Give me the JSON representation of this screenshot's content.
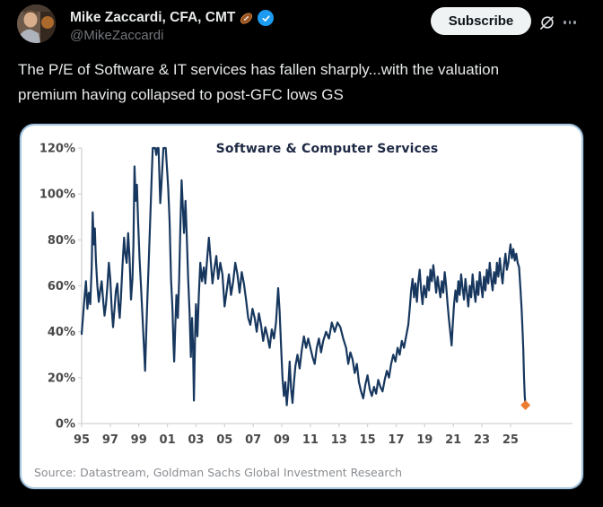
{
  "header": {
    "name": "Mike Zaccardi, CFA, CMT",
    "handle": "@MikeZaccardi",
    "subscribe_label": "Subscribe",
    "icons": {
      "avatar": "profile-photo",
      "name_emoji": "football-emoji",
      "verified": "verified-badge-icon",
      "grok": "grok-icon",
      "more": "more-options-icon"
    }
  },
  "tweet": {
    "text": "The P/E of Software & IT services has fallen sharply...with the valuation premium having collapsed to post-GFC lows GS"
  },
  "colors": {
    "page_bg": "#000000",
    "text_primary": "#E7E9EA",
    "text_secondary": "#71767B",
    "verified_blue": "#1D9BF0",
    "subscribe_bg": "#EFF3F4",
    "card_border": "#A9C7DE",
    "chart_line": "#17375E",
    "marker_orange": "#ED7D31",
    "axis_gray": "#D2D2D2",
    "tick_label_gray": "#4A4A4A"
  },
  "chart_data": {
    "type": "line",
    "title": "Software & Computer Services",
    "source": "Source: Datastream, Goldman Sachs Global Investment Research",
    "xlabel": "",
    "ylabel": "",
    "grid": false,
    "legend": false,
    "ylim": [
      0,
      120
    ],
    "y_ticks": [
      "0%",
      "20%",
      "40%",
      "60%",
      "80%",
      "100%",
      "120%"
    ],
    "y_tick_values": [
      0,
      20,
      40,
      60,
      80,
      100,
      120
    ],
    "x_ticks": [
      "95",
      "97",
      "99",
      "01",
      "03",
      "05",
      "07",
      "09",
      "11",
      "13",
      "15",
      "17",
      "19",
      "21",
      "23",
      "25"
    ],
    "x_tick_years": [
      1995,
      1997,
      1999,
      2001,
      2003,
      2005,
      2007,
      2009,
      2011,
      2013,
      2015,
      2017,
      2019,
      2021,
      2023,
      2025
    ],
    "line_color": "#17375E",
    "endpoint_marker": {
      "shape": "diamond",
      "color": "#ED7D31",
      "year": 2026.05,
      "value": 8
    },
    "series": [
      {
        "points": [
          [
            1995.0,
            39
          ],
          [
            1995.1,
            47
          ],
          [
            1995.2,
            55
          ],
          [
            1995.3,
            62
          ],
          [
            1995.4,
            50
          ],
          [
            1995.5,
            57
          ],
          [
            1995.6,
            52
          ],
          [
            1995.7,
            68
          ],
          [
            1995.77,
            92
          ],
          [
            1995.85,
            78
          ],
          [
            1995.92,
            85
          ],
          [
            1996.0,
            71
          ],
          [
            1996.1,
            60
          ],
          [
            1996.2,
            53
          ],
          [
            1996.3,
            58
          ],
          [
            1996.4,
            62
          ],
          [
            1996.5,
            54
          ],
          [
            1996.6,
            47
          ],
          [
            1996.7,
            52
          ],
          [
            1996.8,
            60
          ],
          [
            1996.9,
            70
          ],
          [
            1997.0,
            63
          ],
          [
            1997.1,
            50
          ],
          [
            1997.2,
            42
          ],
          [
            1997.3,
            50
          ],
          [
            1997.4,
            58
          ],
          [
            1997.5,
            61
          ],
          [
            1997.6,
            50
          ],
          [
            1997.66,
            46
          ],
          [
            1997.75,
            55
          ],
          [
            1997.85,
            68
          ],
          [
            1997.97,
            81
          ],
          [
            1998.05,
            74
          ],
          [
            1998.15,
            70
          ],
          [
            1998.25,
            83
          ],
          [
            1998.35,
            72
          ],
          [
            1998.45,
            54
          ],
          [
            1998.55,
            63
          ],
          [
            1998.62,
            78
          ],
          [
            1998.7,
            112
          ],
          [
            1998.78,
            97
          ],
          [
            1998.87,
            104
          ],
          [
            1998.95,
            88
          ],
          [
            1999.05,
            72
          ],
          [
            1999.15,
            60
          ],
          [
            1999.27,
            45
          ],
          [
            1999.37,
            32
          ],
          [
            1999.44,
            23
          ],
          [
            1999.52,
            40
          ],
          [
            1999.6,
            55
          ],
          [
            1999.7,
            72
          ],
          [
            1999.8,
            90
          ],
          [
            1999.9,
            108
          ],
          [
            1999.97,
            120
          ],
          [
            2000.05,
            120
          ],
          [
            2000.15,
            120
          ],
          [
            2000.22,
            117
          ],
          [
            2000.3,
            120
          ],
          [
            2000.38,
            120
          ],
          [
            2000.45,
            106
          ],
          [
            2000.5,
            96
          ],
          [
            2000.58,
            104
          ],
          [
            2000.65,
            112
          ],
          [
            2000.72,
            120
          ],
          [
            2000.8,
            120
          ],
          [
            2000.88,
            120
          ],
          [
            2000.95,
            113
          ],
          [
            2001.05,
            103
          ],
          [
            2001.15,
            88
          ],
          [
            2001.25,
            63
          ],
          [
            2001.35,
            50
          ],
          [
            2001.42,
            35
          ],
          [
            2001.47,
            27
          ],
          [
            2001.55,
            42
          ],
          [
            2001.63,
            56
          ],
          [
            2001.73,
            46
          ],
          [
            2001.82,
            62
          ],
          [
            2001.9,
            84
          ],
          [
            2001.99,
            106
          ],
          [
            2002.08,
            94
          ],
          [
            2002.16,
            83
          ],
          [
            2002.26,
            97
          ],
          [
            2002.35,
            82
          ],
          [
            2002.45,
            63
          ],
          [
            2002.55,
            48
          ],
          [
            2002.64,
            29
          ],
          [
            2002.72,
            46
          ],
          [
            2002.79,
            34
          ],
          [
            2002.85,
            10
          ],
          [
            2002.93,
            36
          ],
          [
            2003.0,
            52
          ],
          [
            2003.1,
            38
          ],
          [
            2003.2,
            56
          ],
          [
            2003.3,
            70
          ],
          [
            2003.42,
            62
          ],
          [
            2003.55,
            68
          ],
          [
            2003.65,
            61
          ],
          [
            2003.78,
            72
          ],
          [
            2003.9,
            81
          ],
          [
            2004.0,
            73
          ],
          [
            2004.15,
            61
          ],
          [
            2004.3,
            68
          ],
          [
            2004.42,
            73
          ],
          [
            2004.55,
            63
          ],
          [
            2004.7,
            70
          ],
          [
            2004.85,
            65
          ],
          [
            2005.0,
            51
          ],
          [
            2005.15,
            58
          ],
          [
            2005.3,
            65
          ],
          [
            2005.45,
            56
          ],
          [
            2005.6,
            62
          ],
          [
            2005.75,
            70
          ],
          [
            2005.9,
            65
          ],
          [
            2006.05,
            57
          ],
          [
            2006.2,
            66
          ],
          [
            2006.35,
            61
          ],
          [
            2006.5,
            54
          ],
          [
            2006.65,
            46
          ],
          [
            2006.8,
            43
          ],
          [
            2006.95,
            50
          ],
          [
            2007.1,
            46
          ],
          [
            2007.25,
            40
          ],
          [
            2007.4,
            48
          ],
          [
            2007.55,
            43
          ],
          [
            2007.7,
            36
          ],
          [
            2007.85,
            42
          ],
          [
            2008.0,
            38
          ],
          [
            2008.15,
            33
          ],
          [
            2008.3,
            41
          ],
          [
            2008.45,
            37
          ],
          [
            2008.6,
            44
          ],
          [
            2008.75,
            59
          ],
          [
            2008.85,
            49
          ],
          [
            2008.95,
            34
          ],
          [
            2009.05,
            20
          ],
          [
            2009.15,
            12
          ],
          [
            2009.25,
            18
          ],
          [
            2009.35,
            8
          ],
          [
            2009.45,
            16
          ],
          [
            2009.55,
            27
          ],
          [
            2009.65,
            15
          ],
          [
            2009.75,
            9
          ],
          [
            2009.85,
            18
          ],
          [
            2009.95,
            25
          ],
          [
            2010.1,
            30
          ],
          [
            2010.25,
            24
          ],
          [
            2010.4,
            32
          ],
          [
            2010.55,
            38
          ],
          [
            2010.7,
            33
          ],
          [
            2010.85,
            37
          ],
          [
            2011.0,
            33
          ],
          [
            2011.15,
            29
          ],
          [
            2011.3,
            26
          ],
          [
            2011.45,
            33
          ],
          [
            2011.6,
            37
          ],
          [
            2011.75,
            31
          ],
          [
            2011.9,
            36
          ],
          [
            2012.1,
            40
          ],
          [
            2012.3,
            37
          ],
          [
            2012.5,
            44
          ],
          [
            2012.7,
            40
          ],
          [
            2012.9,
            44
          ],
          [
            2013.1,
            42
          ],
          [
            2013.3,
            37
          ],
          [
            2013.5,
            33
          ],
          [
            2013.65,
            26
          ],
          [
            2013.8,
            31
          ],
          [
            2013.95,
            28
          ],
          [
            2014.1,
            22
          ],
          [
            2014.25,
            26
          ],
          [
            2014.4,
            18
          ],
          [
            2014.55,
            14
          ],
          [
            2014.7,
            11
          ],
          [
            2014.85,
            17
          ],
          [
            2015.0,
            21
          ],
          [
            2015.15,
            15
          ],
          [
            2015.3,
            12
          ],
          [
            2015.45,
            16
          ],
          [
            2015.6,
            13
          ],
          [
            2015.75,
            19
          ],
          [
            2015.9,
            16
          ],
          [
            2016.05,
            14
          ],
          [
            2016.2,
            19
          ],
          [
            2016.35,
            23
          ],
          [
            2016.5,
            20
          ],
          [
            2016.65,
            26
          ],
          [
            2016.8,
            30
          ],
          [
            2016.95,
            27
          ],
          [
            2017.1,
            33
          ],
          [
            2017.25,
            30
          ],
          [
            2017.4,
            36
          ],
          [
            2017.55,
            33
          ],
          [
            2017.7,
            38
          ],
          [
            2017.85,
            43
          ],
          [
            2017.95,
            50
          ],
          [
            2018.05,
            58
          ],
          [
            2018.15,
            63
          ],
          [
            2018.25,
            55
          ],
          [
            2018.35,
            61
          ],
          [
            2018.45,
            53
          ],
          [
            2018.55,
            62
          ],
          [
            2018.65,
            67
          ],
          [
            2018.75,
            58
          ],
          [
            2018.85,
            52
          ],
          [
            2018.95,
            60
          ],
          [
            2019.1,
            55
          ],
          [
            2019.2,
            64
          ],
          [
            2019.3,
            58
          ],
          [
            2019.4,
            67
          ],
          [
            2019.5,
            62
          ],
          [
            2019.6,
            69
          ],
          [
            2019.7,
            63
          ],
          [
            2019.8,
            57
          ],
          [
            2019.9,
            64
          ],
          [
            2020.0,
            59
          ],
          [
            2020.1,
            55
          ],
          [
            2020.2,
            62
          ],
          [
            2020.3,
            57
          ],
          [
            2020.4,
            66
          ],
          [
            2020.5,
            60
          ],
          [
            2020.6,
            52
          ],
          [
            2020.7,
            45
          ],
          [
            2020.8,
            39
          ],
          [
            2020.88,
            34
          ],
          [
            2020.95,
            42
          ],
          [
            2021.05,
            52
          ],
          [
            2021.15,
            58
          ],
          [
            2021.25,
            53
          ],
          [
            2021.35,
            62
          ],
          [
            2021.45,
            56
          ],
          [
            2021.55,
            65
          ],
          [
            2021.65,
            59
          ],
          [
            2021.75,
            54
          ],
          [
            2021.85,
            63
          ],
          [
            2021.95,
            57
          ],
          [
            2022.05,
            51
          ],
          [
            2022.15,
            60
          ],
          [
            2022.25,
            55
          ],
          [
            2022.35,
            65
          ],
          [
            2022.45,
            58
          ],
          [
            2022.55,
            53
          ],
          [
            2022.65,
            62
          ],
          [
            2022.75,
            56
          ],
          [
            2022.85,
            66
          ],
          [
            2022.95,
            60
          ],
          [
            2023.05,
            55
          ],
          [
            2023.15,
            64
          ],
          [
            2023.25,
            58
          ],
          [
            2023.35,
            67
          ],
          [
            2023.45,
            61
          ],
          [
            2023.55,
            70
          ],
          [
            2023.65,
            63
          ],
          [
            2023.75,
            58
          ],
          [
            2023.85,
            66
          ],
          [
            2023.95,
            61
          ],
          [
            2024.05,
            70
          ],
          [
            2024.15,
            64
          ],
          [
            2024.25,
            72
          ],
          [
            2024.35,
            66
          ],
          [
            2024.45,
            61
          ],
          [
            2024.55,
            69
          ],
          [
            2024.65,
            74
          ],
          [
            2024.75,
            67
          ],
          [
            2024.85,
            70
          ],
          [
            2024.92,
            74
          ],
          [
            2025.0,
            78
          ],
          [
            2025.1,
            72
          ],
          [
            2025.2,
            76
          ],
          [
            2025.3,
            71
          ],
          [
            2025.4,
            74
          ],
          [
            2025.5,
            70
          ],
          [
            2025.6,
            68
          ],
          [
            2025.7,
            58
          ],
          [
            2025.78,
            50
          ],
          [
            2025.85,
            40
          ],
          [
            2025.9,
            32
          ],
          [
            2025.95,
            20
          ],
          [
            2026.0,
            12
          ],
          [
            2026.05,
            8
          ]
        ]
      }
    ]
  }
}
